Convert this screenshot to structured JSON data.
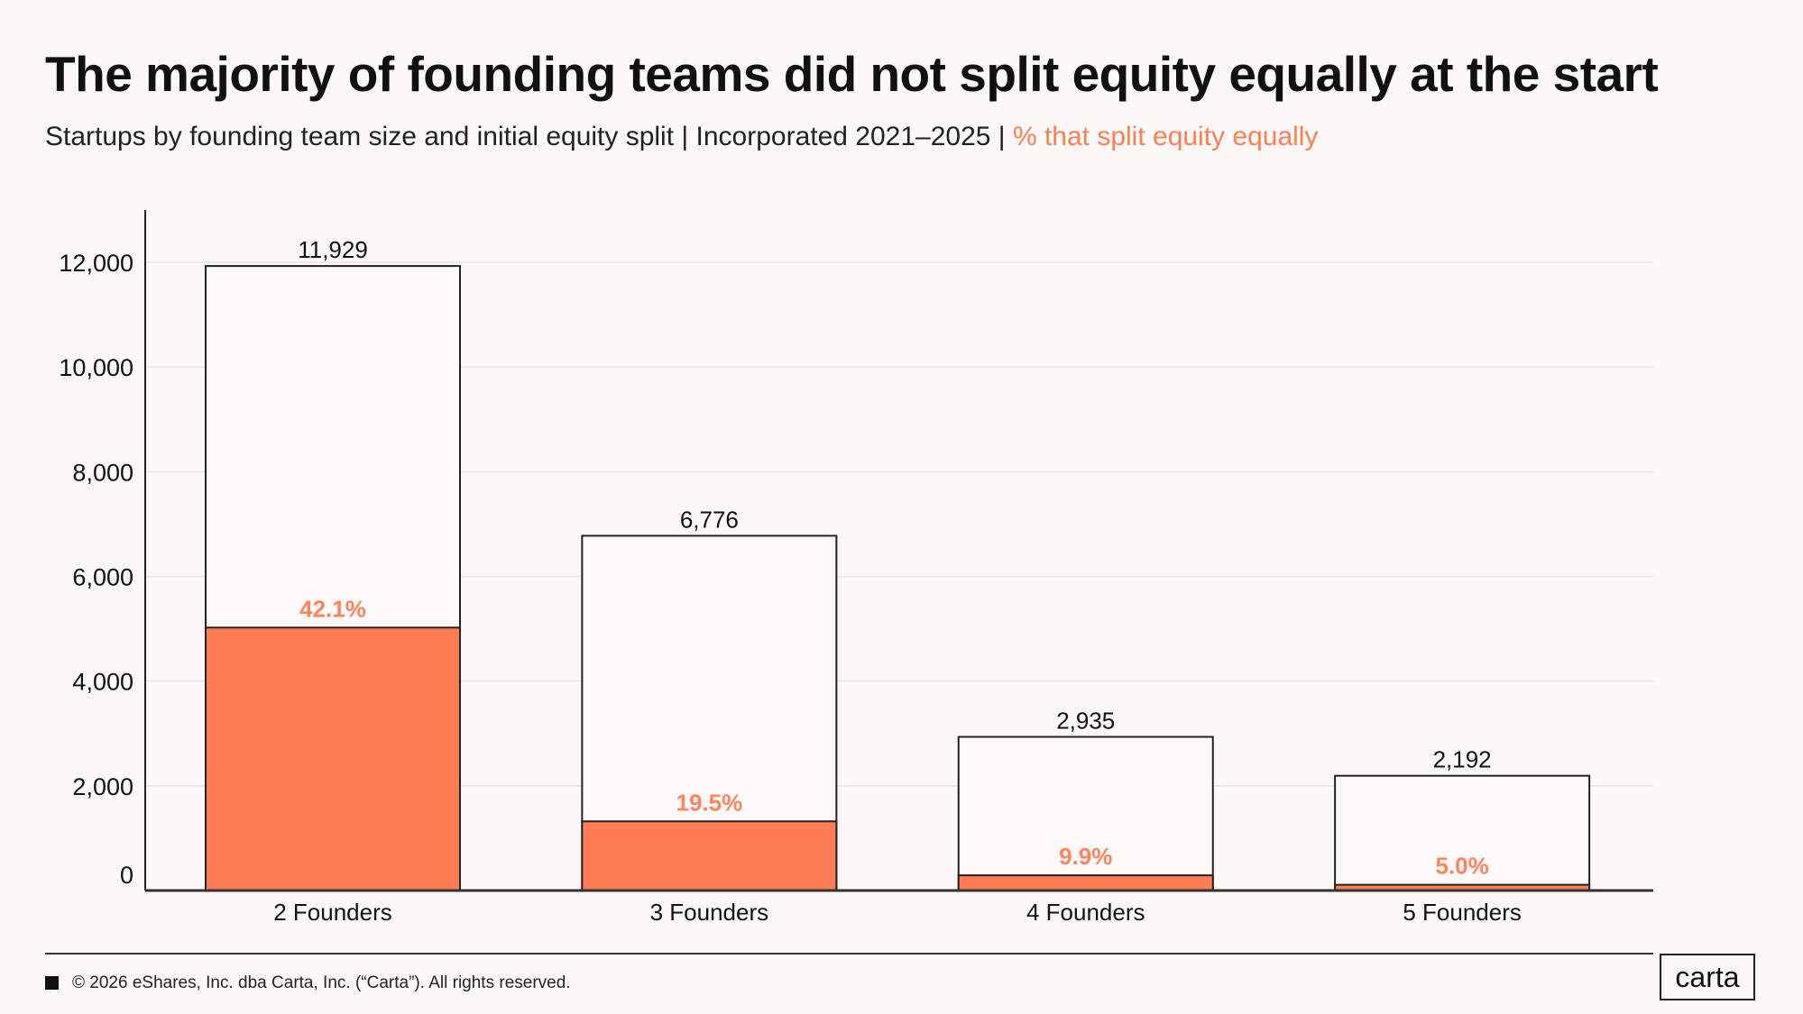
{
  "header": {
    "title": "The majority of founding teams did not split equity equally at the start",
    "subtitle": "Startups by founding team size and initial equity split | Incorporated 2021–2025 | ",
    "subtitle_highlight": "% that split equity equally"
  },
  "footer": {
    "copyright": "© 2026 eShares, Inc. dba Carta, Inc. (“Carta”). All rights reserved.",
    "logo": "carta"
  },
  "colors": {
    "accent": "#ff7c54",
    "accent_label": "#ff855e",
    "total_fill": "#fcf9f8",
    "grid": "#e8e6e4"
  },
  "chart_data": {
    "type": "bar",
    "stacked": "overlay",
    "categories": [
      "2 Founders",
      "3 Founders",
      "4 Founders",
      "5 Founders"
    ],
    "totals": [
      11929,
      6776,
      2935,
      2192
    ],
    "total_labels": [
      "11,929",
      "6,776",
      "2,935",
      "2,192"
    ],
    "equal_split_pct": [
      42.1,
      19.5,
      9.9,
      5.0
    ],
    "equal_split_labels": [
      "42.1%",
      "19.5%",
      "9.9%",
      "5.0%"
    ],
    "ylim": [
      0,
      13000
    ],
    "yticks": [
      0,
      2000,
      4000,
      6000,
      8000,
      10000,
      12000
    ],
    "ytick_labels": [
      "0",
      "2,000",
      "4,000",
      "6,000",
      "8,000",
      "10,000",
      "12,000"
    ],
    "grid": true,
    "xlabel": "",
    "ylabel": ""
  }
}
